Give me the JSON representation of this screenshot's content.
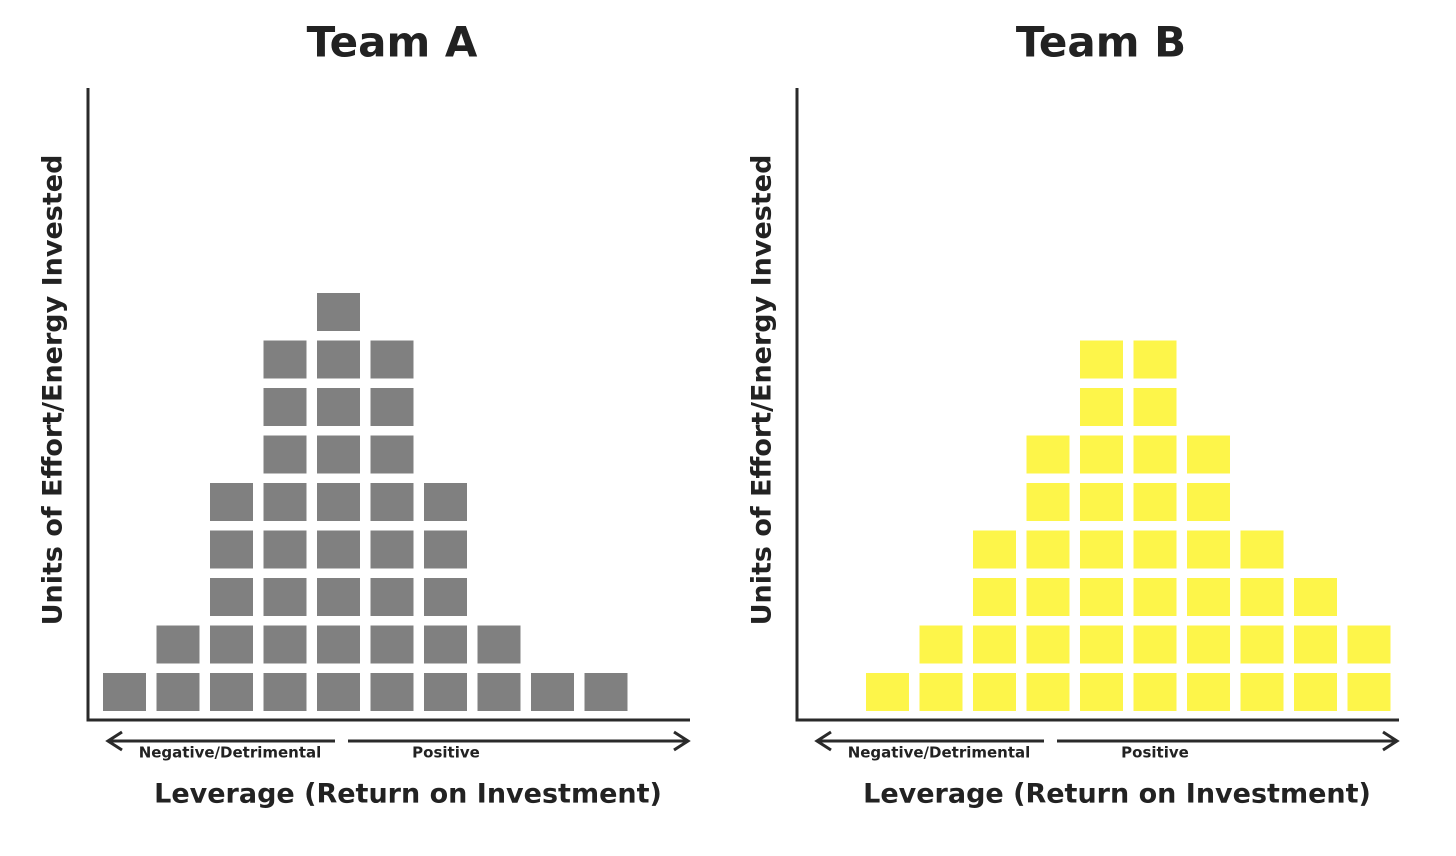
{
  "chart_data": [
    {
      "type": "unit-column",
      "title": "Team A",
      "y_label": "Units of Effort/Energy Invested",
      "x_label": "Leverage (Return on Investment)",
      "annotations": [
        "Negative/Detrimental",
        "Positive"
      ],
      "values": [
        1,
        2,
        5,
        8,
        9,
        8,
        5,
        2,
        1,
        1
      ],
      "color": "#808080"
    },
    {
      "type": "unit-column",
      "title": "Team B",
      "y_label": "Units of Effort/Energy Invested",
      "x_label": "Leverage (Return on Investment)",
      "annotations": [
        "Negative/Detrimental",
        "Positive"
      ],
      "values": [
        1,
        2,
        4,
        6,
        8,
        8,
        6,
        4,
        3,
        2
      ],
      "color": "#fdf54a"
    }
  ]
}
